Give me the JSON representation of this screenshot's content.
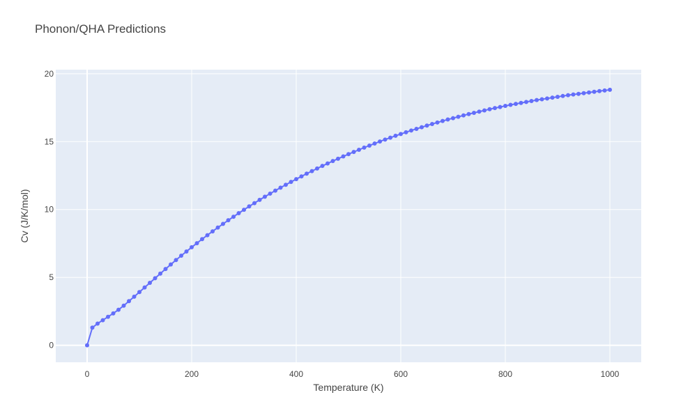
{
  "chart_data": {
    "type": "line",
    "title": "Phonon/QHA Predictions",
    "xlabel": "Temperature (K)",
    "ylabel": "Cv (J/K/mol)",
    "xlim": [
      -60,
      1060
    ],
    "ylim": [
      -1.25,
      20.3
    ],
    "x_ticks": [
      0,
      200,
      400,
      600,
      800,
      1000
    ],
    "y_ticks": [
      0,
      5,
      10,
      15,
      20
    ],
    "grid": true,
    "markers": true,
    "colors": {
      "series": "#636efa",
      "plot_bg": "#e5ecf6",
      "grid": "#ffffff",
      "text": "#444444"
    },
    "series": [
      {
        "x": [
          0,
          10,
          20,
          30,
          40,
          50,
          60,
          70,
          80,
          90,
          100,
          110,
          120,
          130,
          140,
          150,
          160,
          170,
          180,
          190,
          200,
          210,
          220,
          230,
          240,
          250,
          260,
          270,
          280,
          290,
          300,
          310,
          320,
          330,
          340,
          350,
          360,
          370,
          380,
          390,
          400,
          410,
          420,
          430,
          440,
          450,
          460,
          470,
          480,
          490,
          500,
          510,
          520,
          530,
          540,
          550,
          560,
          570,
          580,
          590,
          600,
          610,
          620,
          630,
          640,
          650,
          660,
          670,
          680,
          690,
          700,
          710,
          720,
          730,
          740,
          750,
          760,
          770,
          780,
          790,
          800,
          810,
          820,
          830,
          840,
          850,
          860,
          870,
          880,
          890,
          900,
          910,
          920,
          930,
          940,
          950,
          960,
          970,
          980,
          990,
          1000
        ],
        "values": [
          0,
          1.3,
          1.6,
          1.85,
          2.1,
          2.35,
          2.62,
          2.92,
          3.25,
          3.58,
          3.92,
          4.26,
          4.6,
          4.94,
          5.28,
          5.62,
          5.95,
          6.28,
          6.6,
          6.91,
          7.22,
          7.52,
          7.82,
          8.11,
          8.39,
          8.67,
          8.94,
          9.21,
          9.47,
          9.73,
          9.98,
          10.23,
          10.47,
          10.71,
          10.94,
          11.17,
          11.39,
          11.61,
          11.82,
          12.03,
          12.24,
          12.44,
          12.64,
          12.83,
          13.02,
          13.21,
          13.39,
          13.57,
          13.74,
          13.91,
          14.08,
          14.24,
          14.4,
          14.56,
          14.71,
          14.86,
          15.01,
          15.15,
          15.29,
          15.43,
          15.56,
          15.69,
          15.82,
          15.94,
          16.06,
          16.18,
          16.3,
          16.41,
          16.52,
          16.63,
          16.73,
          16.83,
          16.93,
          17.03,
          17.12,
          17.21,
          17.3,
          17.39,
          17.47,
          17.55,
          17.63,
          17.71,
          17.78,
          17.85,
          17.92,
          17.99,
          18.06,
          18.12,
          18.18,
          18.24,
          18.3,
          18.36,
          18.42,
          18.47,
          18.52,
          18.57,
          18.62,
          18.67,
          18.72,
          18.77,
          18.82
        ]
      }
    ]
  }
}
